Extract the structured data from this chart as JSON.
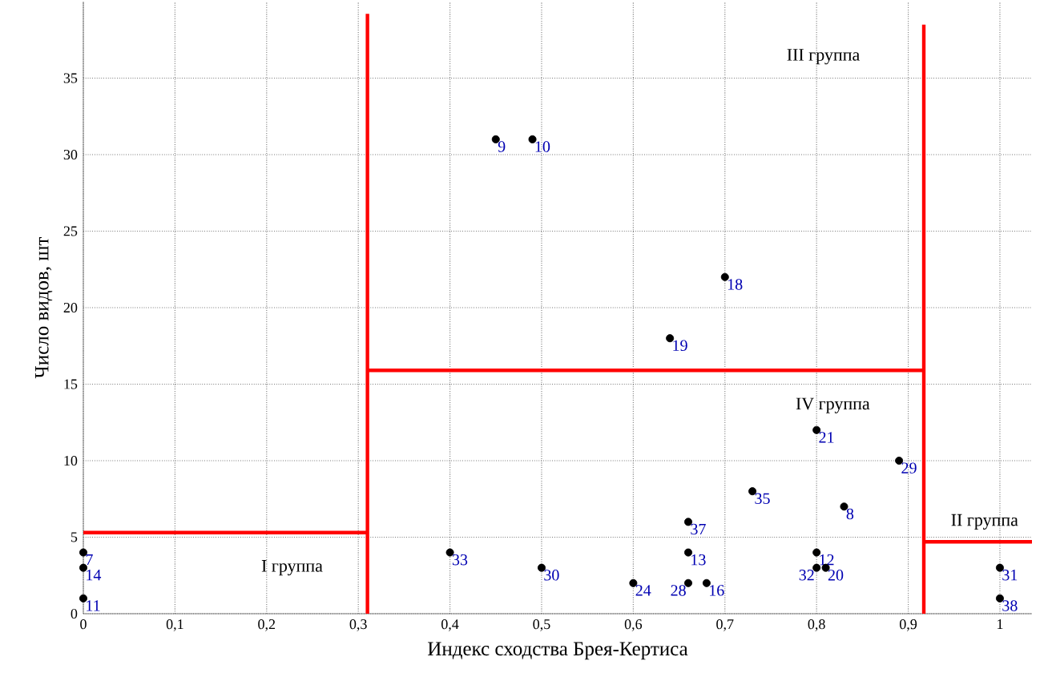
{
  "chart_data": {
    "type": "scatter",
    "xlabel": "Индекс сходства Брея-Кертиса",
    "ylabel": "Число видов, шт",
    "xlim": [
      0,
      1.035
    ],
    "ylim": [
      0,
      40
    ],
    "xticks": [
      0,
      {
        "value": 0.1,
        "label": "0,1"
      },
      {
        "value": 0.2,
        "label": "0,2"
      },
      {
        "value": 0.3,
        "label": "0,3"
      },
      {
        "value": 0.4,
        "label": "0,4"
      },
      {
        "value": 0.5,
        "label": "0,5"
      },
      {
        "value": 0.6,
        "label": "0,6"
      },
      {
        "value": 0.7,
        "label": "0,7"
      },
      {
        "value": 0.8,
        "label": "0,8"
      },
      {
        "value": 0.9,
        "label": "0,9"
      },
      1
    ],
    "yticks": [
      0,
      5,
      10,
      15,
      20,
      25,
      30,
      35
    ],
    "grid": true,
    "series": [
      {
        "color": "#000000",
        "x": [
          0.45,
          0.49,
          0.7,
          0.64,
          0.8,
          0.89,
          0.73,
          0.83,
          0.66,
          0.66,
          0.4,
          0.5,
          0.6,
          0.66,
          0.68,
          0.8,
          0.8,
          0.81,
          1,
          1,
          0,
          0,
          0
        ],
        "values": [
          31,
          31,
          22,
          18,
          12,
          10,
          8,
          7,
          6,
          4,
          4,
          3,
          2,
          2,
          2,
          4,
          3,
          3,
          3,
          1,
          4,
          3,
          1
        ]
      },
      {
        "type": "line",
        "color": "#ff0000",
        "x": [
          0.31,
          0.31
        ],
        "values": [
          0,
          39.2
        ],
        "marker": "none"
      },
      {
        "type": "line",
        "color": "#ff0000",
        "x": [
          0,
          0.31
        ],
        "values": [
          5.3,
          5.3
        ],
        "marker": "none"
      },
      {
        "type": "line",
        "color": "#ff0000",
        "x": [
          0.31,
          0.917
        ],
        "values": [
          15.9,
          15.9
        ],
        "marker": "none"
      },
      {
        "type": "line",
        "color": "#ff0000",
        "x": [
          0.917,
          0.917
        ],
        "values": [
          0,
          38.5
        ],
        "marker": "none"
      },
      {
        "type": "line",
        "color": "#ff0000",
        "x": [
          0.917,
          1.035
        ],
        "values": [
          4.7,
          4.7
        ],
        "marker": "none"
      }
    ],
    "annotations": [
      {
        "text": "9",
        "x": 0.45,
        "y": 31
      },
      {
        "text": "10",
        "x": 0.49,
        "y": 31
      },
      {
        "text": "18",
        "x": 0.7,
        "y": 22
      },
      {
        "text": "19",
        "x": 0.64,
        "y": 18
      },
      {
        "text": "21",
        "x": 0.8,
        "y": 12
      },
      {
        "text": "29",
        "x": 0.89,
        "y": 10
      },
      {
        "text": "35",
        "x": 0.73,
        "y": 8
      },
      {
        "text": "8",
        "x": 0.83,
        "y": 7
      },
      {
        "text": "37",
        "x": 0.66,
        "y": 6
      },
      {
        "text": "13",
        "x": 0.66,
        "y": 4
      },
      {
        "text": "33",
        "x": 0.4,
        "y": 4
      },
      {
        "text": "30",
        "x": 0.5,
        "y": 3
      },
      {
        "text": "24",
        "x": 0.6,
        "y": 2
      },
      {
        "text": "28",
        "x": 0.66,
        "y": 2
      },
      {
        "text": "16",
        "x": 0.68,
        "y": 2
      },
      {
        "text": "12",
        "x": 0.8,
        "y": 4
      },
      {
        "text": "32",
        "x": 0.8,
        "y": 3
      },
      {
        "text": "20",
        "x": 0.81,
        "y": 3
      },
      {
        "text": "31",
        "x": 1,
        "y": 3
      },
      {
        "text": "38",
        "x": 1,
        "y": 1
      },
      {
        "text": "7",
        "x": 0,
        "y": 4
      },
      {
        "text": "14",
        "x": 0,
        "y": 3
      },
      {
        "text": "11",
        "x": 0,
        "y": 1
      },
      "III группа",
      "IV группа",
      "II группа",
      "I группа"
    ]
  }
}
